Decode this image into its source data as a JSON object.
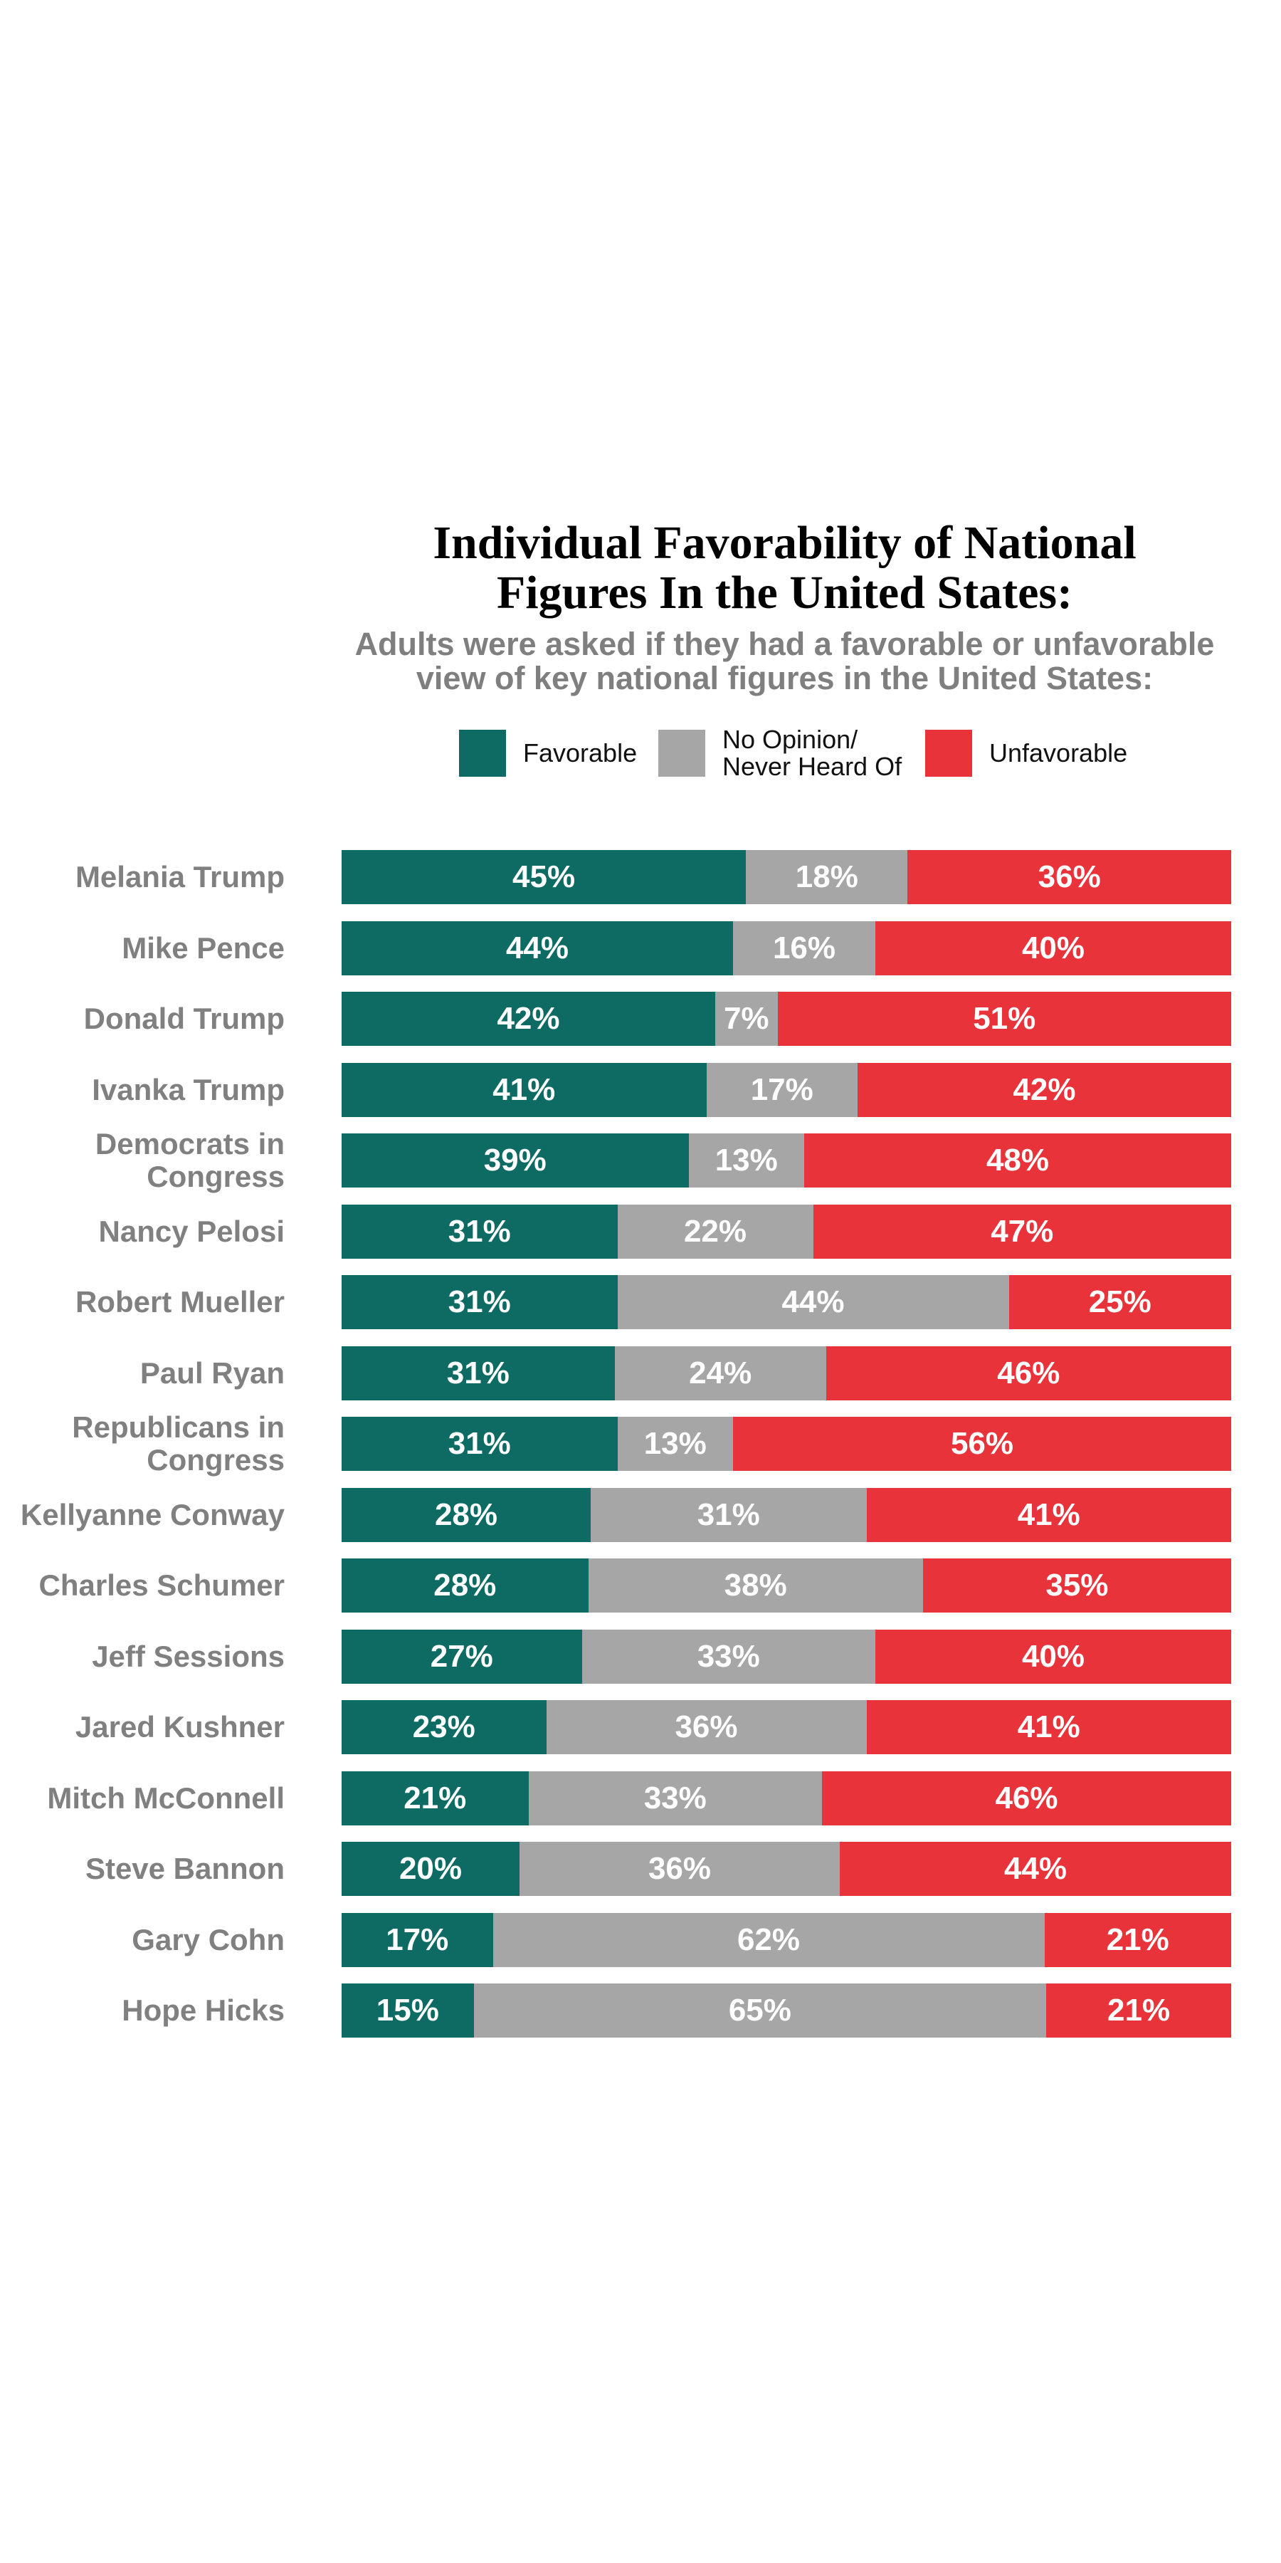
{
  "chart_data": {
    "type": "bar",
    "orientation": "horizontal",
    "stacked": true,
    "title": [
      "Individual Favorability of National",
      "Figures In the United States:"
    ],
    "subtitle": [
      "Adults were asked if they had a favorable or unfavorable",
      "view of key national figures in the United States:"
    ],
    "legend": {
      "placement": "top",
      "items": [
        {
          "key": "favorable",
          "label": [
            "Favorable"
          ],
          "color": "#0d6b64"
        },
        {
          "key": "no_opinion",
          "label": [
            "No Opinion/",
            "Never Heard Of"
          ],
          "color": "#a6a6a6"
        },
        {
          "key": "unfavorable",
          "label": [
            "Unfavorable"
          ],
          "color": "#e8333a"
        }
      ]
    },
    "categories": [
      [
        "Melania Trump"
      ],
      [
        "Mike Pence"
      ],
      [
        "Donald Trump"
      ],
      [
        "Ivanka Trump"
      ],
      [
        "Democrats in",
        "Congress"
      ],
      [
        "Nancy Pelosi"
      ],
      [
        "Robert Mueller"
      ],
      [
        "Paul Ryan"
      ],
      [
        "Republicans in",
        "Congress"
      ],
      [
        "Kellyanne Conway"
      ],
      [
        "Charles Schumer"
      ],
      [
        "Jeff Sessions"
      ],
      [
        "Jared Kushner"
      ],
      [
        "Mitch McConnell"
      ],
      [
        "Steve Bannon"
      ],
      [
        "Gary Cohn"
      ],
      [
        "Hope Hicks"
      ]
    ],
    "series": [
      {
        "name": "Favorable",
        "color": "#0d6b64",
        "values": [
          45,
          44,
          42,
          41,
          39,
          31,
          31,
          31,
          31,
          28,
          28,
          27,
          23,
          21,
          20,
          17,
          15
        ]
      },
      {
        "name": "No Opinion/ Never Heard Of",
        "color": "#a6a6a6",
        "values": [
          18,
          16,
          7,
          17,
          13,
          22,
          44,
          24,
          13,
          31,
          38,
          33,
          36,
          33,
          36,
          62,
          65
        ]
      },
      {
        "name": "Unfavorable",
        "color": "#e8333a",
        "values": [
          36,
          40,
          51,
          42,
          48,
          47,
          25,
          46,
          56,
          41,
          35,
          40,
          41,
          46,
          44,
          21,
          21
        ]
      }
    ],
    "value_suffix": "%",
    "grid": false
  }
}
